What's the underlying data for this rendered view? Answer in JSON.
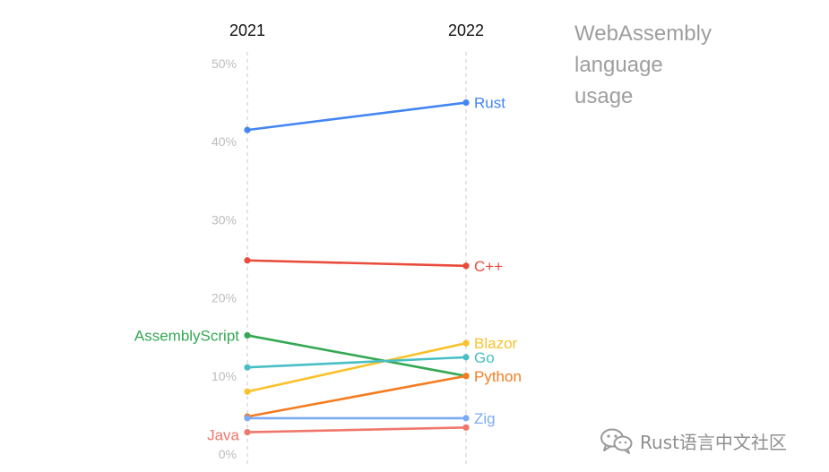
{
  "chart_data": {
    "type": "line",
    "title_lines": [
      "WebAssembly",
      "language",
      "usage"
    ],
    "x": [
      "2021",
      "2022"
    ],
    "y_ticks": [
      "50%",
      "40%",
      "30%",
      "20%",
      "10%",
      "0%"
    ],
    "ylim": [
      0,
      50
    ],
    "grid": false,
    "series": [
      {
        "name": "Rust",
        "values": [
          41.5,
          45.0
        ],
        "color": "#4285f4"
      },
      {
        "name": "C++",
        "values": [
          24.8,
          24.1
        ],
        "color": "#e94b3c"
      },
      {
        "name": "AssemblyScript",
        "values": [
          15.2,
          10.0
        ],
        "color": "#34a853"
      },
      {
        "name": "Blazor",
        "values": [
          8.0,
          14.2
        ],
        "color": "#f9c22b"
      },
      {
        "name": "Go",
        "values": [
          11.1,
          12.4
        ],
        "color": "#47bfc4"
      },
      {
        "name": "Python",
        "values": [
          4.8,
          10.0
        ],
        "color": "#f47c20"
      },
      {
        "name": "Zig",
        "values": [
          4.6,
          4.6
        ],
        "color": "#7baaf7"
      },
      {
        "name": "Java",
        "values": [
          2.8,
          3.4
        ],
        "color": "#f0776c"
      }
    ]
  },
  "watermark": {
    "text": "Rust语言中文社区",
    "icon": "wechat-icon"
  }
}
